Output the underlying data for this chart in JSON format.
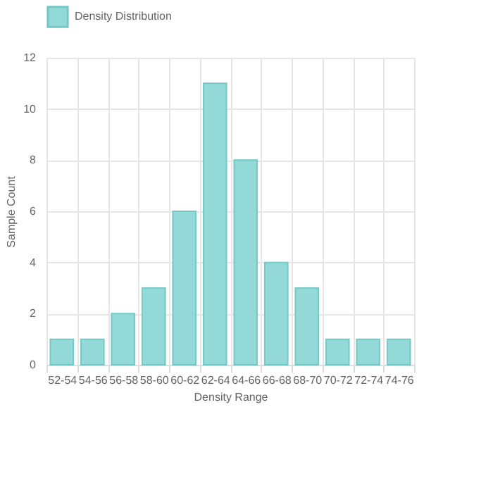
{
  "chart_data": {
    "type": "bar",
    "xlabel": "Density Range",
    "ylabel": "Sample Count",
    "categories": [
      "52-54",
      "54-56",
      "56-58",
      "58-60",
      "60-62",
      "62-64",
      "64-66",
      "66-68",
      "68-70",
      "70-72",
      "72-74",
      "74-76"
    ],
    "series": [
      {
        "name": "Density Distribution",
        "color": "#93d9d7",
        "values": [
          1,
          1,
          2,
          3,
          6,
          11,
          8,
          4,
          3,
          1,
          1,
          1
        ]
      }
    ],
    "ylim": [
      0,
      12
    ],
    "yticks": [
      0,
      2,
      4,
      6,
      8,
      10,
      12
    ],
    "grid": true,
    "legend": "top"
  }
}
